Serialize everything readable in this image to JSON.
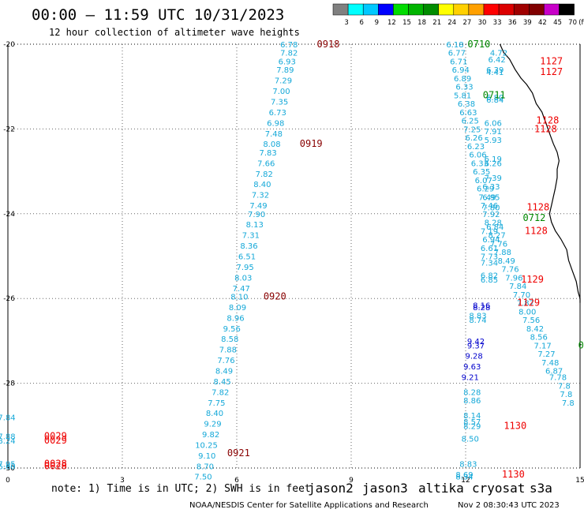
{
  "header": {
    "title": "00:00 – 11:59 UTC 10/31/2023",
    "subtitle": "12 hour collection of altimeter wave heights"
  },
  "colorbar": {
    "labels": [
      "3",
      "6",
      "9",
      "12",
      "15",
      "18",
      "21",
      "24",
      "27",
      "30",
      "33",
      "36",
      "39",
      "42",
      "45",
      "70",
      "(ft)"
    ],
    "colors": [
      "#808080",
      "#00ffff",
      "#00c8ff",
      "#0000ff",
      "#00dc00",
      "#00b400",
      "#008c00",
      "#ffff00",
      "#ffd000",
      "#ffa000",
      "#ff0000",
      "#dc0000",
      "#a00000",
      "#800000",
      "#c800c8",
      "#000000"
    ]
  },
  "footer": {
    "note": "note: 1) Time is in UTC; 2) SWH is in feet",
    "satellites": [
      {
        "name": "jason2",
        "color": "#0000cc"
      },
      {
        "name": "jason3",
        "color": "#008800"
      },
      {
        "name": "altika",
        "color": "#ff9900"
      },
      {
        "name": "cryosat",
        "color": "#ee0000"
      },
      {
        "name": "s3a",
        "color": "#880000"
      }
    ],
    "credit": "NOAA/NESDIS Center for Satellite Applications and Research",
    "generated": "Nov  2 08:30:43 UTC 2023"
  },
  "chart_data": {
    "type": "scatter",
    "title": "00:00 – 11:59 UTC 10/31/2023",
    "subtitle": "12 hour collection of altimeter wave heights",
    "xlim": [
      0,
      15
    ],
    "ylim": [
      -30,
      -20
    ],
    "x_ticks": [
      "0",
      "3",
      "6",
      "9",
      "12",
      "15"
    ],
    "y_ticks": [
      "-20",
      "-22",
      "-24",
      "-26",
      "-28",
      "-30"
    ],
    "grid": true,
    "value_units": "ft",
    "colors": {
      "cyan": "#14a8d8",
      "blue": "#0000cc",
      "green": "#008800",
      "red": "#ee0000",
      "maroon": "#880000"
    },
    "series": [
      {
        "name": "track-1",
        "color": "cyan",
        "points": [
          {
            "x": 7.6,
            "y": -20.0,
            "v": "6.78"
          },
          {
            "x": 7.6,
            "y": -20.2,
            "v": "7.82"
          },
          {
            "x": 7.55,
            "y": -20.4,
            "v": "6.93"
          },
          {
            "x": 7.5,
            "y": -20.6,
            "v": "7.89"
          },
          {
            "x": 7.45,
            "y": -20.85,
            "v": "7.29"
          },
          {
            "x": 7.4,
            "y": -21.1,
            "v": "7.00"
          },
          {
            "x": 7.35,
            "y": -21.35,
            "v": "7.35"
          },
          {
            "x": 7.3,
            "y": -21.6,
            "v": "6.73"
          },
          {
            "x": 7.25,
            "y": -21.85,
            "v": "6.98"
          },
          {
            "x": 7.2,
            "y": -22.1,
            "v": "7.48"
          },
          {
            "x": 7.15,
            "y": -22.35,
            "v": "8.08"
          },
          {
            "x": 7.05,
            "y": -22.55,
            "v": "7.83"
          },
          {
            "x": 7.0,
            "y": -22.8,
            "v": "7.66"
          },
          {
            "x": 6.95,
            "y": -23.05,
            "v": "7.82"
          },
          {
            "x": 6.9,
            "y": -23.3,
            "v": "8.40"
          },
          {
            "x": 6.85,
            "y": -23.55,
            "v": "7.32"
          },
          {
            "x": 6.8,
            "y": -23.8,
            "v": "7.49"
          },
          {
            "x": 6.75,
            "y": -24.0,
            "v": "7.90"
          },
          {
            "x": 6.7,
            "y": -24.25,
            "v": "8.13"
          },
          {
            "x": 6.6,
            "y": -24.5,
            "v": "7.31"
          },
          {
            "x": 6.55,
            "y": -24.75,
            "v": "8.36"
          },
          {
            "x": 6.5,
            "y": -25.0,
            "v": "6.51"
          },
          {
            "x": 6.45,
            "y": -25.25,
            "v": "7.95"
          },
          {
            "x": 6.4,
            "y": -25.5,
            "v": "8.03"
          },
          {
            "x": 6.35,
            "y": -25.75,
            "v": "7.47"
          },
          {
            "x": 6.3,
            "y": -25.95,
            "v": "8.10"
          },
          {
            "x": 6.25,
            "y": -26.2,
            "v": "8.09"
          },
          {
            "x": 6.2,
            "y": -26.45,
            "v": "8.96"
          },
          {
            "x": 6.1,
            "y": -26.7,
            "v": "9.56"
          },
          {
            "x": 6.05,
            "y": -26.95,
            "v": "8.58"
          },
          {
            "x": 6.0,
            "y": -27.2,
            "v": "7.88"
          },
          {
            "x": 5.95,
            "y": -27.45,
            "v": "7.76"
          },
          {
            "x": 5.9,
            "y": -27.7,
            "v": "8.49"
          },
          {
            "x": 5.85,
            "y": -27.95,
            "v": "8.45"
          },
          {
            "x": 5.8,
            "y": -28.2,
            "v": "7.82"
          },
          {
            "x": 5.7,
            "y": -28.45,
            "v": "7.75"
          },
          {
            "x": 5.65,
            "y": -28.7,
            "v": "8.40"
          },
          {
            "x": 5.6,
            "y": -28.95,
            "v": "9.29"
          },
          {
            "x": 5.55,
            "y": -29.2,
            "v": "9.82"
          },
          {
            "x": 5.5,
            "y": -29.45,
            "v": "10.25"
          },
          {
            "x": 5.45,
            "y": -29.7,
            "v": "9.10"
          },
          {
            "x": 5.4,
            "y": -29.95,
            "v": "8.70"
          },
          {
            "x": 5.35,
            "y": -30.2,
            "v": "7.50"
          }
        ]
      },
      {
        "name": "track-2",
        "color": "cyan",
        "points": [
          {
            "x": 11.95,
            "y": -20.0,
            "v": "6.18"
          },
          {
            "x": 12.0,
            "y": -20.2,
            "v": "6.77"
          },
          {
            "x": 12.05,
            "y": -20.4,
            "v": "6.71"
          },
          {
            "x": 12.1,
            "y": -20.6,
            "v": "6.94"
          },
          {
            "x": 12.15,
            "y": -20.8,
            "v": "6.89"
          },
          {
            "x": 12.2,
            "y": -21.0,
            "v": "6.33"
          },
          {
            "x": 12.15,
            "y": -21.2,
            "v": "5.81"
          },
          {
            "x": 12.25,
            "y": -21.4,
            "v": "6.38"
          },
          {
            "x": 12.3,
            "y": -21.6,
            "v": "6.63"
          },
          {
            "x": 12.35,
            "y": -21.8,
            "v": "6.25"
          },
          {
            "x": 12.4,
            "y": -22.0,
            "v": "7.25"
          },
          {
            "x": 12.45,
            "y": -22.2,
            "v": "6.26"
          },
          {
            "x": 12.5,
            "y": -22.4,
            "v": "6.23"
          },
          {
            "x": 12.55,
            "y": -22.6,
            "v": "6.06"
          },
          {
            "x": 12.6,
            "y": -22.8,
            "v": "6.33"
          },
          {
            "x": 12.65,
            "y": -23.0,
            "v": "6.35"
          },
          {
            "x": 12.7,
            "y": -23.2,
            "v": "6.07"
          },
          {
            "x": 12.75,
            "y": -23.4,
            "v": "6.29"
          },
          {
            "x": 12.8,
            "y": -23.6,
            "v": "7.49"
          },
          {
            "x": 12.85,
            "y": -23.8,
            "v": "7.46"
          },
          {
            "x": 12.9,
            "y": -24.0,
            "v": "7.92"
          },
          {
            "x": 12.95,
            "y": -24.2,
            "v": "8.28"
          },
          {
            "x": 12.85,
            "y": -24.4,
            "v": "7.19"
          },
          {
            "x": 12.9,
            "y": -24.6,
            "v": "6.94"
          },
          {
            "x": 12.85,
            "y": -24.8,
            "v": "6.61"
          },
          {
            "x": 12.85,
            "y": -25.0,
            "v": "7.73"
          },
          {
            "x": 12.85,
            "y": -25.15,
            "v": "7.34"
          },
          {
            "x": 12.85,
            "y": -25.45,
            "v": "6.82"
          },
          {
            "x": 12.85,
            "y": -25.55,
            "v": "6.85"
          }
        ]
      },
      {
        "name": "track-3",
        "color": "cyan",
        "points": [
          {
            "x": 13.1,
            "y": -20.2,
            "v": "4.72"
          },
          {
            "x": 13.05,
            "y": -20.35,
            "v": "6.42"
          },
          {
            "x": 13.0,
            "y": -20.6,
            "v": "6.39"
          },
          {
            "x": 13.0,
            "y": -20.65,
            "v": "4.41"
          },
          {
            "x": 13.0,
            "y": -21.25,
            "v": "6.80"
          },
          {
            "x": 13.0,
            "y": -21.3,
            "v": "6.84"
          },
          {
            "x": 12.95,
            "y": -21.85,
            "v": "6.06"
          },
          {
            "x": 12.95,
            "y": -22.05,
            "v": "7.91"
          },
          {
            "x": 12.95,
            "y": -22.25,
            "v": "5.93"
          },
          {
            "x": 12.95,
            "y": -22.7,
            "v": "6.19"
          },
          {
            "x": 12.95,
            "y": -22.8,
            "v": "6.26"
          },
          {
            "x": 12.95,
            "y": -23.15,
            "v": "7.39"
          },
          {
            "x": 12.9,
            "y": -23.35,
            "v": "6.33"
          },
          {
            "x": 12.9,
            "y": -23.6,
            "v": "6.95"
          },
          {
            "x": 12.9,
            "y": -23.85,
            "v": "7.80"
          }
        ]
      },
      {
        "name": "track-4",
        "color": "cyan",
        "points": [
          {
            "x": 13.0,
            "y": -24.3,
            "v": "6.84"
          },
          {
            "x": 13.05,
            "y": -24.5,
            "v": "8.27"
          },
          {
            "x": 13.1,
            "y": -24.7,
            "v": "7.76"
          },
          {
            "x": 13.2,
            "y": -24.9,
            "v": "7.88"
          },
          {
            "x": 13.3,
            "y": -25.1,
            "v": "8.49"
          },
          {
            "x": 13.4,
            "y": -25.3,
            "v": "7.76"
          },
          {
            "x": 13.5,
            "y": -25.5,
            "v": "7.96"
          },
          {
            "x": 13.6,
            "y": -25.7,
            "v": "7.84"
          },
          {
            "x": 13.7,
            "y": -25.9,
            "v": "7.70"
          },
          {
            "x": 13.8,
            "y": -26.1,
            "v": "7.87"
          },
          {
            "x": 13.85,
            "y": -26.3,
            "v": "8.00"
          },
          {
            "x": 13.95,
            "y": -26.5,
            "v": "7.56"
          },
          {
            "x": 14.05,
            "y": -26.7,
            "v": "8.42"
          },
          {
            "x": 14.15,
            "y": -26.9,
            "v": "8.56"
          },
          {
            "x": 14.25,
            "y": -27.1,
            "v": "7.17"
          },
          {
            "x": 14.35,
            "y": -27.3,
            "v": "7.27"
          },
          {
            "x": 14.45,
            "y": -27.5,
            "v": "7.48"
          },
          {
            "x": 14.55,
            "y": -27.7,
            "v": "6.87"
          },
          {
            "x": 14.65,
            "y": -27.85,
            "v": "7.78"
          },
          {
            "x": 14.75,
            "y": -28.05,
            "v": "7.8"
          },
          {
            "x": 14.8,
            "y": -28.25,
            "v": "7.8"
          },
          {
            "x": 14.85,
            "y": -28.45,
            "v": "7.8"
          }
        ]
      },
      {
        "name": "track-5",
        "color": "cyan",
        "points": [
          {
            "x": 12.55,
            "y": -26.4,
            "v": "8.83"
          },
          {
            "x": 12.55,
            "y": -26.5,
            "v": "8.74"
          },
          {
            "x": 12.4,
            "y": -28.2,
            "v": "8.28"
          },
          {
            "x": 12.4,
            "y": -28.4,
            "v": "8.86"
          },
          {
            "x": 12.4,
            "y": -28.75,
            "v": "8.14"
          },
          {
            "x": 12.4,
            "y": -28.9,
            "v": "8.57"
          },
          {
            "x": 12.4,
            "y": -29.0,
            "v": "8.29"
          },
          {
            "x": 12.35,
            "y": -29.3,
            "v": "8.50"
          },
          {
            "x": 12.3,
            "y": -29.9,
            "v": "8.83"
          },
          {
            "x": 12.2,
            "y": -30.15,
            "v": "8.69"
          },
          {
            "x": 12.2,
            "y": -30.2,
            "v": "8.34"
          }
        ]
      },
      {
        "name": "track-6",
        "color": "cyan",
        "points": [
          {
            "x": 0.2,
            "y": -28.8,
            "v": "7.84"
          },
          {
            "x": 0.2,
            "y": -29.25,
            "v": "7.88"
          },
          {
            "x": 0.2,
            "y": -29.35,
            "v": "8.24"
          },
          {
            "x": 0.2,
            "y": -29.9,
            "v": "7.95"
          },
          {
            "x": 0.2,
            "y": -29.95,
            "v": "6.60"
          }
        ]
      },
      {
        "name": "track-7",
        "color": "blue",
        "points": [
          {
            "x": 12.65,
            "y": -26.15,
            "v": "8.16"
          },
          {
            "x": 12.65,
            "y": -26.2,
            "v": "8.28"
          },
          {
            "x": 12.5,
            "y": -27.0,
            "v": "9.42"
          },
          {
            "x": 12.5,
            "y": -27.1,
            "v": "9.37"
          },
          {
            "x": 12.45,
            "y": -27.35,
            "v": "9.28"
          },
          {
            "x": 12.4,
            "y": -27.6,
            "v": "9.63"
          },
          {
            "x": 12.35,
            "y": -27.85,
            "v": "9.21"
          }
        ]
      },
      {
        "name": "time-labels",
        "color": "mixed",
        "points": [
          {
            "x": 8.1,
            "y": -20.0,
            "v": "0918",
            "color": "maroon"
          },
          {
            "x": 7.65,
            "y": -22.35,
            "v": "0919",
            "color": "maroon"
          },
          {
            "x": 6.7,
            "y": -25.95,
            "v": "0920",
            "color": "maroon"
          },
          {
            "x": 5.75,
            "y": -29.65,
            "v": "0921",
            "color": "maroon"
          },
          {
            "x": 12.05,
            "y": -20.0,
            "v": "0710",
            "color": "green"
          },
          {
            "x": 12.45,
            "y": -21.2,
            "v": "0711",
            "color": "green"
          },
          {
            "x": 13.5,
            "y": -24.1,
            "v": "0712",
            "color": "green"
          },
          {
            "x": 14.95,
            "y": -27.1,
            "v": "0",
            "color": "green"
          },
          {
            "x": 13.95,
            "y": -20.4,
            "v": "1127",
            "color": "red"
          },
          {
            "x": 13.95,
            "y": -20.65,
            "v": "1127",
            "color": "red"
          },
          {
            "x": 13.85,
            "y": -21.8,
            "v": "1128",
            "color": "red"
          },
          {
            "x": 13.8,
            "y": -22.0,
            "v": "1128",
            "color": "red"
          },
          {
            "x": 13.6,
            "y": -23.85,
            "v": "1128",
            "color": "red"
          },
          {
            "x": 13.55,
            "y": -24.4,
            "v": "1128",
            "color": "red"
          },
          {
            "x": 13.45,
            "y": -25.55,
            "v": "1129",
            "color": "red"
          },
          {
            "x": 13.35,
            "y": -26.1,
            "v": "1129",
            "color": "red"
          },
          {
            "x": 13.0,
            "y": -29.0,
            "v": "1130",
            "color": "red"
          },
          {
            "x": 12.95,
            "y": -30.15,
            "v": "1130",
            "color": "red"
          },
          {
            "x": 0.95,
            "y": -29.25,
            "v": "0029",
            "color": "red"
          },
          {
            "x": 0.95,
            "y": -29.35,
            "v": "0029",
            "color": "red"
          },
          {
            "x": 0.95,
            "y": -29.9,
            "v": "0028",
            "color": "red"
          },
          {
            "x": 0.95,
            "y": -29.95,
            "v": "0028",
            "color": "red"
          }
        ]
      }
    ],
    "coastline": [
      [
        12.9,
        -20.0
      ],
      [
        13.0,
        -20.2
      ],
      [
        13.15,
        -20.35
      ],
      [
        13.3,
        -20.6
      ],
      [
        13.45,
        -20.8
      ],
      [
        13.6,
        -20.95
      ],
      [
        13.75,
        -21.15
      ],
      [
        13.85,
        -21.4
      ],
      [
        14.0,
        -21.6
      ],
      [
        14.1,
        -21.85
      ],
      [
        14.2,
        -22.1
      ],
      [
        14.3,
        -22.35
      ],
      [
        14.4,
        -22.55
      ],
      [
        14.45,
        -22.75
      ],
      [
        14.4,
        -22.95
      ],
      [
        14.4,
        -23.15
      ],
      [
        14.35,
        -23.4
      ],
      [
        14.3,
        -23.6
      ],
      [
        14.25,
        -23.8
      ],
      [
        14.2,
        -24.0
      ],
      [
        14.25,
        -24.2
      ],
      [
        14.35,
        -24.4
      ],
      [
        14.5,
        -24.6
      ],
      [
        14.65,
        -24.85
      ],
      [
        14.7,
        -25.1
      ],
      [
        14.8,
        -25.35
      ],
      [
        14.9,
        -25.6
      ],
      [
        14.95,
        -25.85
      ],
      [
        15.0,
        -26.0
      ],
      [
        15.0,
        -26.1
      ]
    ]
  }
}
